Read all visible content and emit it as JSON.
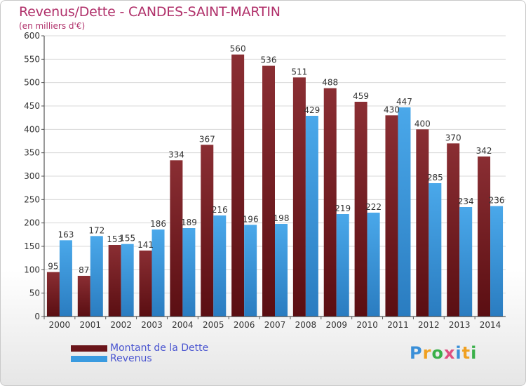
{
  "header": {
    "title": "Revenus/Dette - CANDES-SAINT-MARTIN",
    "subtitle": "(en milliers d'€)"
  },
  "legend": {
    "items": [
      {
        "label": "Montant de la Dette",
        "color": "#7a1f24"
      },
      {
        "label": "Revenus",
        "color": "#3a9be0"
      }
    ]
  },
  "logo": {
    "text": "Proxiti",
    "letters": [
      {
        "ch": "P",
        "color": "#3a8fd8"
      },
      {
        "ch": "r",
        "color": "#f0a020"
      },
      {
        "ch": "o",
        "color": "#3ab04a"
      },
      {
        "ch": "x",
        "color": "#e05080"
      },
      {
        "ch": "i",
        "color": "#3a8fd8"
      },
      {
        "ch": "t",
        "color": "#f0a020"
      },
      {
        "ch": "i",
        "color": "#3ab04a"
      }
    ]
  },
  "chart_data": {
    "type": "bar",
    "categories": [
      "2000",
      "2001",
      "2002",
      "2003",
      "2004",
      "2005",
      "2006",
      "2007",
      "2008",
      "2009",
      "2010",
      "2011",
      "2012",
      "2013",
      "2014"
    ],
    "series": [
      {
        "name": "Montant de la Dette",
        "color": "#7a1f24",
        "values": [
          95,
          87,
          153,
          141,
          334,
          367,
          560,
          536,
          511,
          488,
          459,
          430,
          400,
          370,
          342
        ]
      },
      {
        "name": "Revenus",
        "color": "#3a9be0",
        "values": [
          163,
          172,
          155,
          186,
          189,
          216,
          196,
          198,
          429,
          219,
          222,
          447,
          285,
          234,
          236
        ]
      }
    ],
    "ylim": [
      0,
      600
    ],
    "yticks": [
      0,
      50,
      100,
      150,
      200,
      250,
      300,
      350,
      400,
      450,
      500,
      550,
      600
    ],
    "grid": true,
    "legend_position": "bottom-left"
  }
}
